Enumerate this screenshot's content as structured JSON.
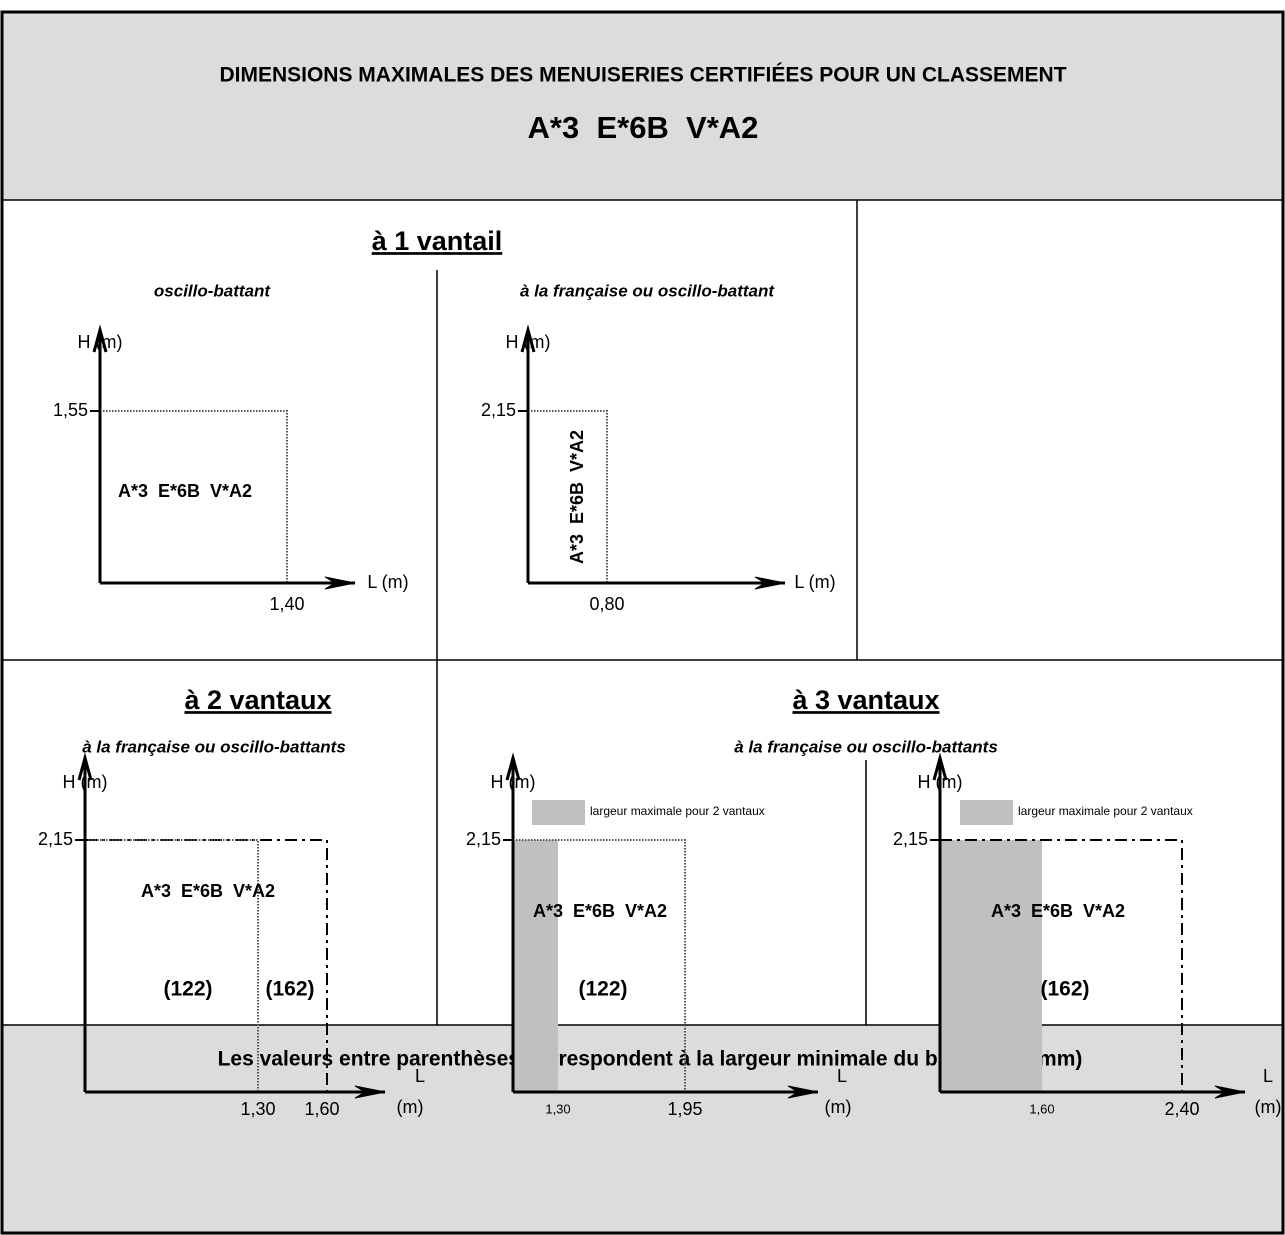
{
  "header": {
    "title": "DIMENSIONS MAXIMALES DES MENUISERIES CERTIFIÉES POUR UN CLASSEMENT",
    "classification": "A*3  E*6B  V*A2"
  },
  "sections": [
    {
      "title": "à 1 vantail"
    },
    {
      "title": "à 2 vantaux"
    },
    {
      "title": "à 3 vantaux",
      "subtitle": "à la française ou oscillo-battants"
    }
  ],
  "diagrams": [
    {
      "subtitle": "oscillo-battant",
      "y_label": "H (m)",
      "x_label": [
        "L (m)"
      ],
      "y_tick": "1,55",
      "x_ticks": [
        "1,40"
      ],
      "label": "A*3  E*6B  V*A2"
    },
    {
      "subtitle": "à la française ou oscillo-battant",
      "y_label": "H (m)",
      "x_label": [
        "L (m)"
      ],
      "y_tick": "2,15",
      "x_ticks": [
        "0,80"
      ],
      "label": "A*3  E*6B  V*A2"
    },
    {
      "subtitle": "à la française ou oscillo-battants",
      "y_label": "H (m)",
      "x_label": [
        "L",
        "(m)"
      ],
      "y_tick": "2,15",
      "x_ticks": [
        "1,30",
        "1,60"
      ],
      "label": "A*3  E*6B  V*A2",
      "notes": [
        "(122)",
        "(162)"
      ]
    },
    {
      "y_label": "H (m)",
      "x_label": [
        "L",
        "(m)"
      ],
      "y_tick": "2,15",
      "x_ticks": [
        "1,30",
        "1,95"
      ],
      "label": "A*3  E*6B  V*A2",
      "notes": [
        "(122)"
      ],
      "legend": "largeur maximale pour 2 vantaux"
    },
    {
      "y_label": "H (m)",
      "x_label": [
        "L",
        "(m)"
      ],
      "y_tick": "2,15",
      "x_ticks": [
        "1,60",
        "2,40"
      ],
      "label": "A*3  E*6B  V*A2",
      "notes": [
        "(162)"
      ],
      "legend": "largeur maximale pour 2 vantaux"
    }
  ],
  "footer": "Les valeurs entre parenthèses correspondent à la largeur minimale du battement (mm)"
}
